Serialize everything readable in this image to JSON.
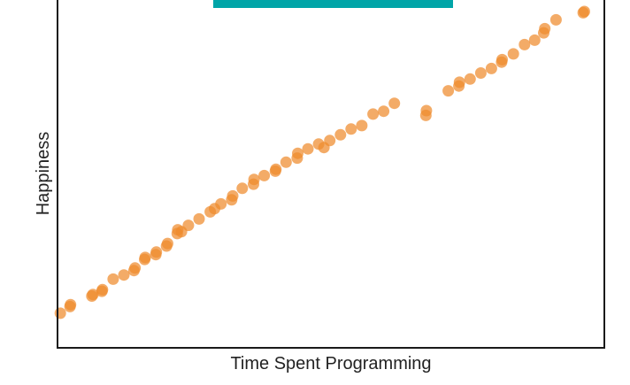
{
  "colors": {
    "points": "#ee8a2c",
    "banner": "#00a5a8",
    "axis": "#1a1a1a",
    "background": "#ffffff"
  },
  "chart_data": {
    "type": "scatter",
    "title": "",
    "xlabel": "Time Spent Programming",
    "ylabel": "Happiness",
    "xlim": [
      0,
      100
    ],
    "ylim": [
      0,
      100
    ],
    "grid": false,
    "legend": "none",
    "x_ticks": [],
    "y_ticks": [],
    "series": [
      {
        "x": [
          0.2,
          2.0,
          2.1,
          6.1,
          6.3,
          8.0,
          8.1,
          10.1,
          12.1,
          14.0,
          14.2,
          16.0,
          16.1,
          18.1,
          18.2,
          20.1,
          20.3,
          22.1,
          22.2,
          22.9,
          24.2,
          26.2,
          28.3,
          29.1,
          30.3,
          32.3,
          32.5,
          34.3,
          36.4,
          36.5,
          38.4,
          40.5,
          40.6,
          42.5,
          44.6,
          44.7,
          46.6,
          48.6,
          49.6,
          50.7,
          52.7,
          54.7,
          56.7,
          58.8,
          60.8,
          62.8,
          68.7,
          68.8,
          72.9,
          74.9,
          75.0,
          77.0,
          79.0,
          81.0,
          82.9,
          83.0,
          85.1,
          87.2,
          89.1,
          90.8,
          91.0,
          93.1,
          98.2,
          98.4
        ],
        "y": [
          5.3,
          7.4,
          8.0,
          10.7,
          11.2,
          12.2,
          12.7,
          16.0,
          17.3,
          18.7,
          19.5,
          22.2,
          22.8,
          23.7,
          24.5,
          26.4,
          27.2,
          30.3,
          31.5,
          30.9,
          32.9,
          34.9,
          37.1,
          38.1,
          39.6,
          40.9,
          42.1,
          44.5,
          45.8,
          47.3,
          48.5,
          49.9,
          50.5,
          52.7,
          54.0,
          55.5,
          56.9,
          58.4,
          57.3,
          59.5,
          61.3,
          63.1,
          64.2,
          67.8,
          68.7,
          71.2,
          67.4,
          68.9,
          75.1,
          76.6,
          77.8,
          78.8,
          80.7,
          82.1,
          84.1,
          84.9,
          86.7,
          89.6,
          91.0,
          93.3,
          94.6,
          97.4,
          99.6,
          100.0
        ]
      }
    ]
  }
}
